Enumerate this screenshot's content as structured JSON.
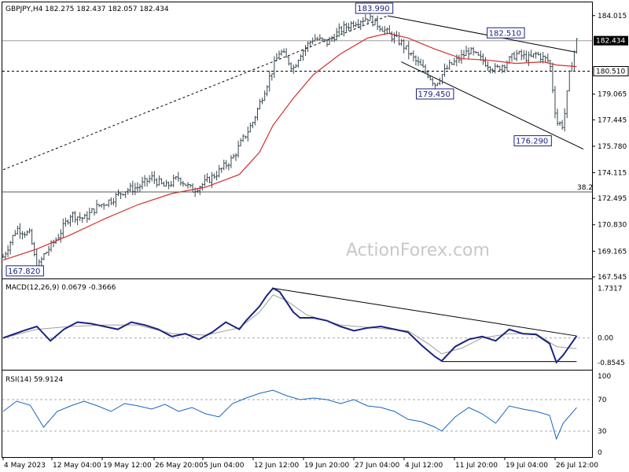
{
  "chart_data": [
    {
      "type": "candlestick",
      "header": "GBPJPY,H4  182.275 182.437 182.057 182.434",
      "ylim": [
        167.545,
        184.6
      ],
      "y_ticks": [
        "184.015",
        "182.434",
        "180.510",
        "179.065",
        "177.445",
        "175.780",
        "174.115",
        "172.495",
        "170.830",
        "169.165",
        "167.545"
      ],
      "x_ticks": [
        "4 May 2023",
        "12 May 04:00",
        "19 May 12:00",
        "26 May 20:00",
        "5 Jun 04:00",
        "12 Jun 12:00",
        "19 Jun 20:00",
        "27 Jun 04:00",
        "4 Jul 12:00",
        "11 Jul 20:00",
        "19 Jul 04:00",
        "26 Jul 12:00"
      ],
      "current_price": "182.434",
      "support_level": "180.510",
      "fib_label": "38.2",
      "fib_level": 172.9,
      "point_labels": [
        "183.990",
        "182.510",
        "179.450",
        "176.290",
        "167.820"
      ],
      "price_path": [
        [
          0,
          168.8
        ],
        [
          4,
          170.6
        ],
        [
          8,
          170.2
        ],
        [
          10,
          168.0
        ],
        [
          12,
          168.9
        ],
        [
          16,
          170.0
        ],
        [
          20,
          171.5
        ],
        [
          24,
          171.2
        ],
        [
          28,
          172.0
        ],
        [
          32,
          172.4
        ],
        [
          36,
          173.0
        ],
        [
          40,
          173.2
        ],
        [
          44,
          173.8
        ],
        [
          48,
          173.2
        ],
        [
          52,
          173.8
        ],
        [
          56,
          173.0
        ],
        [
          60,
          173.5
        ],
        [
          64,
          174.2
        ],
        [
          68,
          175.0
        ],
        [
          70,
          175.8
        ],
        [
          74,
          177.3
        ],
        [
          78,
          179.6
        ],
        [
          82,
          181.8
        ],
        [
          84,
          181.3
        ],
        [
          86,
          180.7
        ],
        [
          88,
          181.6
        ],
        [
          92,
          182.6
        ],
        [
          96,
          182.3
        ],
        [
          100,
          183.1
        ],
        [
          104,
          183.6
        ],
        [
          108,
          183.9
        ],
        [
          112,
          183.3
        ],
        [
          114,
          182.9
        ],
        [
          118,
          182.3
        ],
        [
          122,
          181.2
        ],
        [
          126,
          180.3
        ],
        [
          128,
          179.7
        ],
        [
          132,
          180.8
        ],
        [
          134,
          181.1
        ],
        [
          138,
          181.8
        ],
        [
          142,
          181.2
        ],
        [
          146,
          180.6
        ],
        [
          150,
          181.2
        ],
        [
          152,
          181.6
        ],
        [
          156,
          181.3
        ],
        [
          158,
          181.6
        ],
        [
          162,
          181.1
        ],
        [
          164,
          177.3
        ],
        [
          166,
          177.1
        ],
        [
          168,
          180.5
        ],
        [
          170,
          182.43
        ]
      ],
      "ma_path": [
        [
          0,
          168.6
        ],
        [
          10,
          169.3
        ],
        [
          20,
          170.2
        ],
        [
          30,
          171.2
        ],
        [
          40,
          172.1
        ],
        [
          50,
          172.8
        ],
        [
          60,
          173.2
        ],
        [
          70,
          174.0
        ],
        [
          76,
          175.4
        ],
        [
          80,
          177.1
        ],
        [
          86,
          178.8
        ],
        [
          92,
          180.3
        ],
        [
          100,
          181.6
        ],
        [
          108,
          182.6
        ],
        [
          114,
          182.9
        ],
        [
          120,
          182.6
        ],
        [
          128,
          181.9
        ],
        [
          136,
          181.3
        ],
        [
          144,
          181.2
        ],
        [
          152,
          181.0
        ],
        [
          160,
          181.1
        ],
        [
          164,
          180.9
        ],
        [
          170,
          180.8
        ]
      ],
      "trendlines": [
        {
          "from": [
            0,
            174.3
          ],
          "to": [
            114,
            184.0
          ]
        },
        {
          "from": [
            114,
            184.0
          ],
          "to": [
            170,
            181.7
          ]
        },
        {
          "from": [
            118,
            181.1
          ],
          "to": [
            172,
            175.6
          ]
        }
      ]
    },
    {
      "type": "line",
      "header": "MACD(12,26,9) 0.0679 -0.3666",
      "ylim": [
        -1.05,
        1.85
      ],
      "y_ticks": [
        "1.7317",
        "0.00",
        "-0.8545"
      ],
      "macd_path": [
        [
          0,
          0
        ],
        [
          6,
          0.25
        ],
        [
          10,
          0.4
        ],
        [
          14,
          -0.1
        ],
        [
          18,
          0.3
        ],
        [
          22,
          0.55
        ],
        [
          26,
          0.5
        ],
        [
          30,
          0.4
        ],
        [
          34,
          0.3
        ],
        [
          38,
          0.55
        ],
        [
          42,
          0.45
        ],
        [
          46,
          0.3
        ],
        [
          50,
          0.05
        ],
        [
          54,
          0.15
        ],
        [
          58,
          -0.05
        ],
        [
          62,
          0.2
        ],
        [
          66,
          0.55
        ],
        [
          70,
          0.3
        ],
        [
          72,
          0.6
        ],
        [
          76,
          1.1
        ],
        [
          78,
          1.45
        ],
        [
          80,
          1.73
        ],
        [
          82,
          1.6
        ],
        [
          86,
          0.9
        ],
        [
          88,
          0.7
        ],
        [
          92,
          0.7
        ],
        [
          96,
          0.6
        ],
        [
          100,
          0.4
        ],
        [
          104,
          0.25
        ],
        [
          108,
          0.35
        ],
        [
          112,
          0.4
        ],
        [
          116,
          0.3
        ],
        [
          120,
          0.2
        ],
        [
          124,
          -0.25
        ],
        [
          128,
          -0.65
        ],
        [
          130,
          -0.8
        ],
        [
          134,
          -0.3
        ],
        [
          138,
          -0.05
        ],
        [
          142,
          0.05
        ],
        [
          146,
          -0.1
        ],
        [
          150,
          0.3
        ],
        [
          154,
          0.15
        ],
        [
          158,
          0.12
        ],
        [
          162,
          -0.2
        ],
        [
          164,
          -0.85
        ],
        [
          166,
          -0.6
        ],
        [
          170,
          0.07
        ]
      ],
      "signal_path": [
        [
          0,
          0
        ],
        [
          10,
          0.3
        ],
        [
          20,
          0.4
        ],
        [
          30,
          0.45
        ],
        [
          40,
          0.45
        ],
        [
          50,
          0.15
        ],
        [
          60,
          0.1
        ],
        [
          70,
          0.35
        ],
        [
          76,
          0.9
        ],
        [
          80,
          1.5
        ],
        [
          84,
          1.3
        ],
        [
          90,
          0.8
        ],
        [
          100,
          0.45
        ],
        [
          110,
          0.35
        ],
        [
          120,
          0.25
        ],
        [
          126,
          -0.2
        ],
        [
          130,
          -0.55
        ],
        [
          136,
          -0.35
        ],
        [
          142,
          0.0
        ],
        [
          150,
          0.15
        ],
        [
          158,
          0.15
        ],
        [
          164,
          -0.3
        ],
        [
          170,
          -0.37
        ]
      ],
      "trendlines": [
        {
          "from": [
            80,
            1.73
          ],
          "to": [
            170,
            0.07
          ]
        },
        {
          "from": [
            130,
            -0.82
          ],
          "to": [
            170,
            -0.82
          ]
        }
      ]
    },
    {
      "type": "line",
      "header": "RSI(14) 59.9124",
      "ylim": [
        0,
        100
      ],
      "y_ticks": [
        "100",
        "70",
        "30",
        "0"
      ],
      "rsi_path": [
        [
          0,
          55
        ],
        [
          4,
          68
        ],
        [
          8,
          63
        ],
        [
          12,
          35
        ],
        [
          16,
          55
        ],
        [
          20,
          62
        ],
        [
          24,
          68
        ],
        [
          28,
          62
        ],
        [
          32,
          55
        ],
        [
          36,
          65
        ],
        [
          40,
          62
        ],
        [
          44,
          58
        ],
        [
          48,
          64
        ],
        [
          52,
          55
        ],
        [
          56,
          60
        ],
        [
          60,
          52
        ],
        [
          64,
          48
        ],
        [
          68,
          65
        ],
        [
          72,
          72
        ],
        [
          76,
          78
        ],
        [
          80,
          82
        ],
        [
          84,
          75
        ],
        [
          88,
          70
        ],
        [
          92,
          72
        ],
        [
          96,
          70
        ],
        [
          100,
          65
        ],
        [
          104,
          70
        ],
        [
          108,
          62
        ],
        [
          112,
          60
        ],
        [
          116,
          55
        ],
        [
          120,
          45
        ],
        [
          124,
          42
        ],
        [
          128,
          35
        ],
        [
          130,
          30
        ],
        [
          134,
          48
        ],
        [
          138,
          60
        ],
        [
          142,
          52
        ],
        [
          146,
          40
        ],
        [
          150,
          62
        ],
        [
          154,
          58
        ],
        [
          158,
          55
        ],
        [
          162,
          50
        ],
        [
          164,
          20
        ],
        [
          166,
          40
        ],
        [
          170,
          59.9
        ]
      ]
    }
  ],
  "watermark": "ActionForex.com",
  "colors": {
    "price": "#37474f",
    "ma": "#d32f2f",
    "macd": "#1a237e",
    "signal": "#9e9e9e",
    "rsi": "#1565c0"
  }
}
